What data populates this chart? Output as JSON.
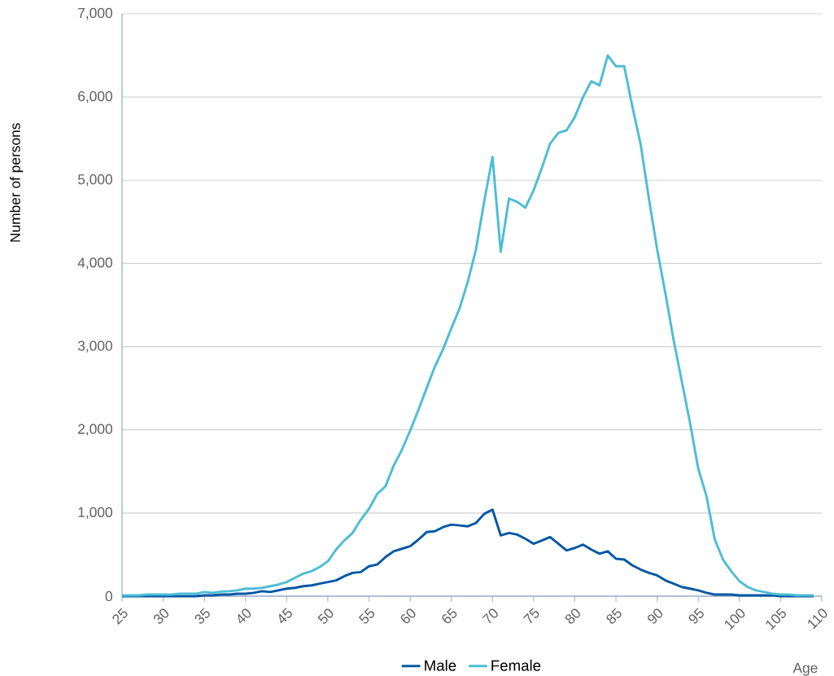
{
  "chart_data": {
    "type": "line",
    "xlabel": "Age",
    "ylabel": "Number of persons",
    "x": [
      25,
      26,
      27,
      28,
      29,
      30,
      31,
      32,
      33,
      34,
      35,
      36,
      37,
      38,
      39,
      40,
      41,
      42,
      43,
      44,
      45,
      46,
      47,
      48,
      49,
      50,
      51,
      52,
      53,
      54,
      55,
      56,
      57,
      58,
      59,
      60,
      61,
      62,
      63,
      64,
      65,
      66,
      67,
      68,
      69,
      70,
      71,
      72,
      73,
      74,
      75,
      76,
      77,
      78,
      79,
      80,
      81,
      82,
      83,
      84,
      85,
      86,
      87,
      88,
      89,
      90,
      91,
      92,
      93,
      94,
      95,
      96,
      97,
      98,
      99,
      100,
      101,
      102,
      103,
      104,
      105,
      106,
      107,
      108,
      109
    ],
    "series": [
      {
        "name": "Male",
        "color": "#0057a3",
        "values": [
          0,
          0,
          0,
          0,
          0,
          0,
          0,
          0,
          0,
          0,
          10,
          10,
          20,
          20,
          30,
          30,
          40,
          60,
          50,
          70,
          90,
          100,
          120,
          130,
          150,
          170,
          190,
          240,
          280,
          290,
          360,
          380,
          470,
          540,
          570,
          600,
          680,
          770,
          780,
          830,
          860,
          850,
          840,
          880,
          990,
          1040,
          730,
          760,
          740,
          690,
          630,
          670,
          710,
          630,
          550,
          580,
          620,
          560,
          510,
          540,
          450,
          440,
          370,
          320,
          280,
          250,
          190,
          150,
          110,
          90,
          70,
          40,
          20,
          20,
          20,
          10,
          10,
          10,
          10,
          10,
          0,
          0,
          0,
          0,
          0
        ]
      },
      {
        "name": "Female",
        "color": "#4dbdd5",
        "values": [
          10,
          10,
          10,
          20,
          20,
          20,
          20,
          30,
          30,
          30,
          50,
          40,
          55,
          60,
          70,
          90,
          90,
          100,
          120,
          140,
          170,
          220,
          270,
          300,
          350,
          420,
          560,
          670,
          760,
          920,
          1050,
          1230,
          1320,
          1570,
          1760,
          1990,
          2240,
          2500,
          2760,
          2970,
          3220,
          3460,
          3780,
          4170,
          4750,
          5280,
          4140,
          4780,
          4740,
          4670,
          4880,
          5150,
          5440,
          5570,
          5600,
          5760,
          6000,
          6190,
          6140,
          6500,
          6370,
          6370,
          5880,
          5430,
          4780,
          4170,
          3640,
          3080,
          2580,
          2080,
          1530,
          1200,
          680,
          440,
          300,
          180,
          110,
          70,
          50,
          30,
          20,
          20,
          10,
          10,
          10
        ]
      }
    ],
    "xlim": [
      25,
      110
    ],
    "xticks": [
      25,
      30,
      35,
      40,
      45,
      50,
      55,
      60,
      65,
      70,
      75,
      80,
      85,
      90,
      95,
      100,
      105,
      110
    ],
    "ylim": [
      0,
      7000
    ],
    "yticks": [
      {
        "value": 0,
        "label": "0"
      },
      {
        "value": 1000,
        "label": "1,000"
      },
      {
        "value": 2000,
        "label": "2,000"
      },
      {
        "value": 3000,
        "label": "3,000"
      },
      {
        "value": 4000,
        "label": "4,000"
      },
      {
        "value": 5000,
        "label": "5,000"
      },
      {
        "value": 6000,
        "label": "6,000"
      },
      {
        "value": 7000,
        "label": "7,000"
      }
    ],
    "grid": "y",
    "legend": "bottom",
    "line_style": "solid"
  }
}
